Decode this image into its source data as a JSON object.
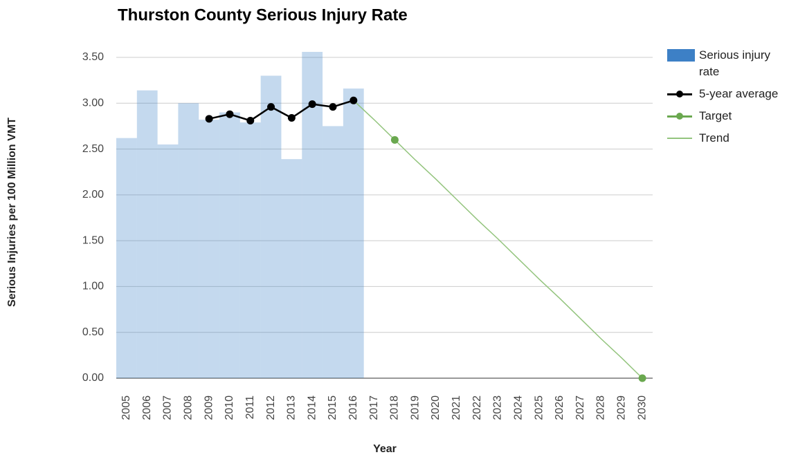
{
  "chart_data": {
    "type": "combo",
    "title": "Thurston County Serious Injury Rate",
    "x_label": "Year",
    "y_label": "Serious Injuries per 100 Million VMT",
    "categories": [
      "2005",
      "2006",
      "2007",
      "2008",
      "2009",
      "2010",
      "2011",
      "2012",
      "2013",
      "2014",
      "2015",
      "2016",
      "2017",
      "2018",
      "2019",
      "2020",
      "2021",
      "2022",
      "2023",
      "2024",
      "2025",
      "2026",
      "2027",
      "2028",
      "2029",
      "2030"
    ],
    "series": [
      {
        "name": "Serious injury rate",
        "type": "bar",
        "color": "#3d80c6",
        "values": [
          2.62,
          3.14,
          2.55,
          3.0,
          2.82,
          2.9,
          2.79,
          3.3,
          2.39,
          3.56,
          2.75,
          3.16,
          null,
          null,
          null,
          null,
          null,
          null,
          null,
          null,
          null,
          null,
          null,
          null,
          null,
          null
        ]
      },
      {
        "name": "5-year average",
        "type": "line-points",
        "color": "#000000",
        "values": [
          null,
          null,
          null,
          null,
          2.83,
          2.88,
          2.81,
          2.96,
          2.84,
          2.99,
          2.96,
          3.03,
          null,
          null,
          null,
          null,
          null,
          null,
          null,
          null,
          null,
          null,
          null,
          null,
          null,
          null
        ]
      },
      {
        "name": "Target",
        "type": "points",
        "color": "#6aa84f",
        "values": [
          null,
          null,
          null,
          null,
          null,
          null,
          null,
          null,
          null,
          null,
          null,
          null,
          null,
          2.6,
          null,
          null,
          null,
          null,
          null,
          null,
          null,
          null,
          null,
          null,
          null,
          0
        ]
      },
      {
        "name": "Trend",
        "type": "line",
        "color": "#93c47d",
        "values": [
          null,
          null,
          null,
          null,
          null,
          null,
          null,
          null,
          null,
          null,
          null,
          3.03,
          2.82,
          2.6,
          2.38,
          2.17,
          1.95,
          1.73,
          1.52,
          1.3,
          1.08,
          0.87,
          0.65,
          0.43,
          0.22,
          0
        ]
      }
    ],
    "ylim": [
      0,
      3.5
    ],
    "yticks": [
      {
        "value": 0,
        "label": "0.00"
      },
      {
        "value": 0.5,
        "label": "0.50"
      },
      {
        "value": 1,
        "label": "1.00"
      },
      {
        "value": 1.5,
        "label": "1.50"
      },
      {
        "value": 2,
        "label": "2.00"
      },
      {
        "value": 2.5,
        "label": "2.50"
      },
      {
        "value": 3,
        "label": "3.00"
      },
      {
        "value": 3.5,
        "label": "3.50"
      }
    ],
    "grid": true,
    "legend": "right"
  }
}
